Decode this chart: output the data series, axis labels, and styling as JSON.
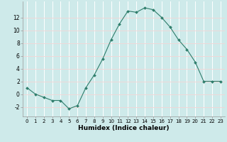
{
  "x": [
    0,
    1,
    2,
    3,
    4,
    5,
    6,
    7,
    8,
    9,
    10,
    11,
    12,
    13,
    14,
    15,
    16,
    17,
    18,
    19,
    20,
    21,
    22,
    23
  ],
  "y": [
    1,
    0,
    -0.5,
    -1,
    -1,
    -2.3,
    -1.8,
    1,
    3,
    5.5,
    8.5,
    11,
    13,
    12.8,
    13.5,
    13.2,
    12,
    10.5,
    8.5,
    7,
    5,
    2,
    2,
    2
  ],
  "line_color": "#2e7d6b",
  "marker": "D",
  "marker_size": 2.0,
  "bg_color": "#ceeaea",
  "hgrid_color": "#f0d8d8",
  "vgrid_color": "#ffffff",
  "xlabel": "Humidex (Indice chaleur)",
  "xlim": [
    -0.5,
    23.5
  ],
  "ylim": [
    -3.5,
    14.5
  ],
  "xticks": [
    0,
    1,
    2,
    3,
    4,
    5,
    6,
    7,
    8,
    9,
    10,
    11,
    12,
    13,
    14,
    15,
    16,
    17,
    18,
    19,
    20,
    21,
    22,
    23
  ],
  "yticks": [
    -2,
    0,
    2,
    4,
    6,
    8,
    10,
    12
  ],
  "xtick_fontsize": 5.0,
  "ytick_fontsize": 5.5,
  "xlabel_fontsize": 6.5
}
